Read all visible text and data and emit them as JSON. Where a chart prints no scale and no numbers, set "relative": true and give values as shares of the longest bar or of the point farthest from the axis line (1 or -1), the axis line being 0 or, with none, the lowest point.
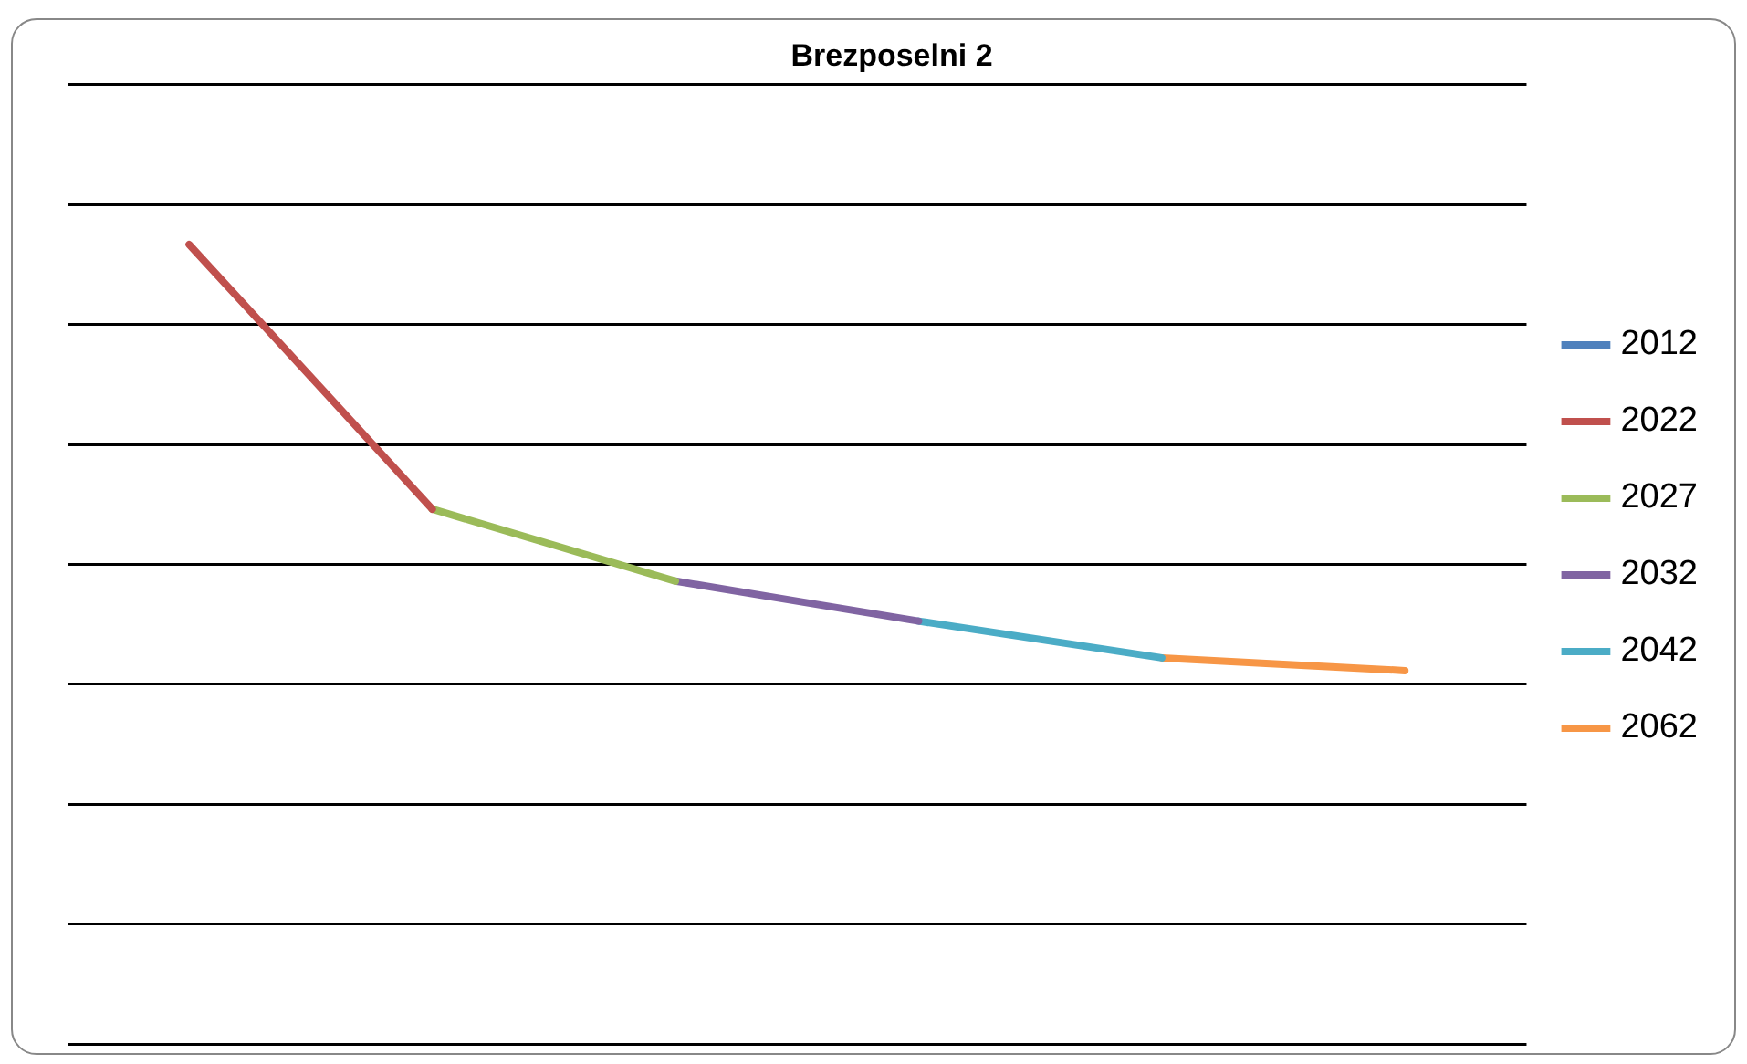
{
  "chart_data": {
    "type": "line",
    "title": "Brezposelni 2",
    "relative": true,
    "grid": "y",
    "legend": "right",
    "marker": "none",
    "line_style": "solid",
    "categories": [
      null,
      null,
      null,
      null,
      null,
      null
    ],
    "series": [
      {
        "name": "2012",
        "color": "#4f81bd",
        "values": [
          null,
          null,
          null,
          null,
          null,
          null
        ]
      },
      {
        "name": "2022",
        "color": "#c0504d",
        "values": [
          1,
          0.669,
          null,
          null,
          null,
          null
        ]
      },
      {
        "name": "2027",
        "color": "#9bbb59",
        "values": [
          null,
          0.669,
          0.579,
          null,
          null,
          null
        ]
      },
      {
        "name": "2032",
        "color": "#8064a2",
        "values": [
          null,
          null,
          0.579,
          0.529,
          null,
          null
        ]
      },
      {
        "name": "2042",
        "color": "#4bacc6",
        "values": [
          null,
          null,
          null,
          0.529,
          0.483,
          null
        ]
      },
      {
        "name": "2062",
        "color": "#f79646",
        "values": [
          null,
          null,
          null,
          null,
          0.483,
          0.467
        ]
      }
    ]
  }
}
